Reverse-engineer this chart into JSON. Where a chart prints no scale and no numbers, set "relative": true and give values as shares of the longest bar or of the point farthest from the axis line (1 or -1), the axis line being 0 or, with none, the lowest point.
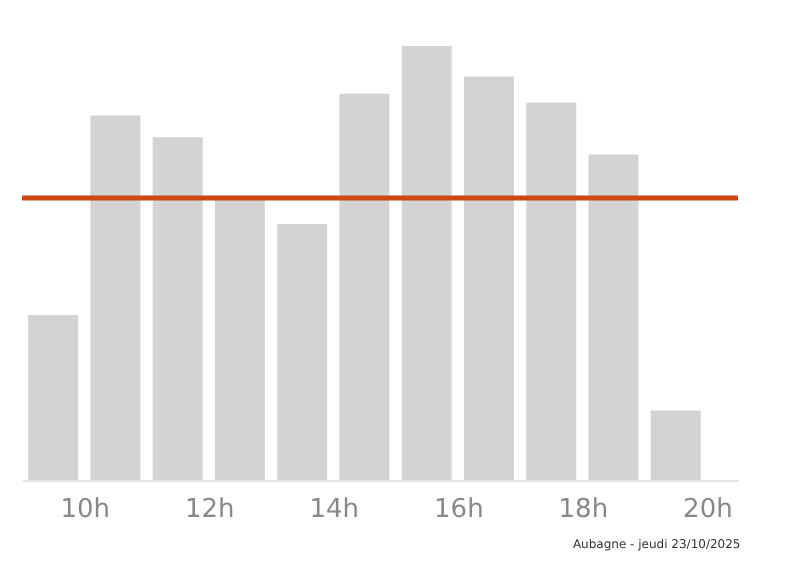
{
  "chart_data": {
    "type": "bar",
    "relative": true,
    "x": [
      9.5,
      10.5,
      11.5,
      12.5,
      13.5,
      14.5,
      15.5,
      16.5,
      17.5,
      18.5,
      19.5
    ],
    "values": [
      0.38,
      0.84,
      0.79,
      0.65,
      0.59,
      0.89,
      1,
      0.93,
      0.87,
      0.75,
      0.16
    ],
    "color": "#d3d3d3",
    "xlim": [
      9,
      20.5
    ],
    "xticks": [
      {
        "value": 10,
        "label": "10h"
      },
      {
        "value": 12,
        "label": "12h"
      },
      {
        "value": 14,
        "label": "14h"
      },
      {
        "value": 16,
        "label": "16h"
      },
      {
        "value": 18,
        "label": "18h"
      },
      {
        "value": 20,
        "label": "20h"
      }
    ],
    "ref_lines": [
      {
        "axis": "y",
        "value": 0.65,
        "color": "#cc4a12"
      }
    ],
    "annotations": [
      "Aubagne - jeudi 23/10/2025"
    ],
    "grid": false
  }
}
